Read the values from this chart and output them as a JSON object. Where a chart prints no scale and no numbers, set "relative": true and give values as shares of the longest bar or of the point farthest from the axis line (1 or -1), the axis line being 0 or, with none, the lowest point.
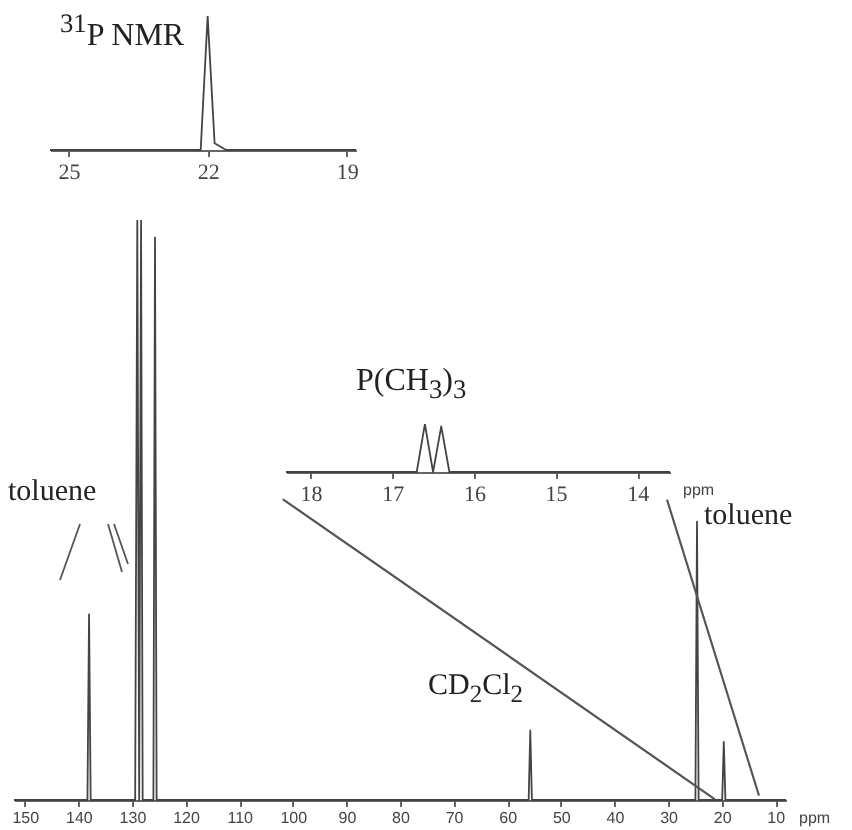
{
  "chart_data": [
    {
      "type": "line",
      "relative": true,
      "xlabel": "ppm",
      "xlim": [
        152,
        8
      ],
      "xticks": [
        150,
        140,
        130,
        120,
        110,
        100,
        90,
        80,
        70,
        60,
        50,
        40,
        30,
        20,
        10
      ],
      "annotations": [
        "toluene",
        "toluene",
        "CD$_{2}$Cl$_{2}$"
      ],
      "series": [
        {
          "color": "#444444",
          "x": [
            152,
            138.3,
            138,
            137.7,
            129.4,
            129,
            128.65,
            128.3,
            128.0,
            126.0,
            125.7,
            125.4,
            56.0,
            55.7,
            55.4,
            24.9,
            24.6,
            24.3,
            19.9,
            19.6,
            19.3,
            8
          ],
          "values": [
            0,
            0,
            0.32,
            0,
            0,
            1,
            0,
            1,
            0,
            0,
            0.97,
            0,
            0,
            0.12,
            0,
            0,
            0.48,
            0,
            0,
            0.1,
            0,
            0
          ]
        }
      ]
    },
    {
      "type": "line",
      "relative": true,
      "title": "$^{31}$P NMR",
      "xlim": [
        25.4,
        18.8
      ],
      "xticks": [
        25,
        22,
        19
      ],
      "series": [
        {
          "color": "#444444",
          "x": [
            25.4,
            22.15,
            22,
            21.85,
            21.6,
            18.8
          ],
          "values": [
            0,
            0,
            1,
            0.05,
            0,
            0
          ]
        }
      ]
    },
    {
      "type": "line",
      "relative": true,
      "title": "P(CH$_{3}$)$_{3}$",
      "xlabel": "ppm",
      "xlim": [
        18.3,
        13.6
      ],
      "xticks": [
        18,
        17,
        16,
        15,
        14
      ],
      "series": [
        {
          "color": "#444444",
          "x": [
            18.3,
            16.7,
            16.6,
            16.5,
            16.4,
            16.3,
            13.6
          ],
          "values": [
            0,
            0,
            1,
            0,
            0.95,
            0,
            0
          ]
        }
      ]
    }
  ]
}
